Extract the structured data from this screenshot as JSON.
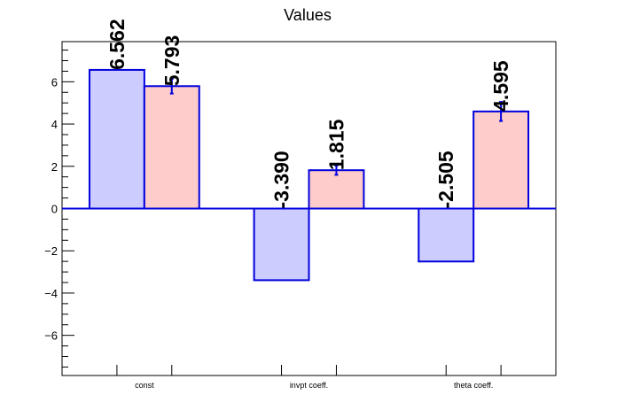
{
  "chart_data": {
    "type": "bar",
    "title": "Values",
    "categories": [
      "const",
      "invpt coeff.",
      "theta coeff."
    ],
    "series": [
      {
        "values": [
          6.562,
          -3.39,
          -2.505
        ],
        "labels": [
          "6.562",
          "-3.390",
          "-2.505"
        ],
        "errors": [
          0,
          0,
          0
        ],
        "fill": "#ccccff",
        "stroke": "#0000dd"
      },
      {
        "values": [
          5.793,
          1.815,
          4.595
        ],
        "labels": [
          "5.793",
          "1.815",
          "4.595"
        ],
        "errors": [
          0.35,
          0.22,
          0.45
        ],
        "fill": "#ffcccc",
        "stroke": "#0000dd"
      }
    ],
    "ylim": [
      -7.9,
      7.9
    ],
    "yticks": [
      -6,
      -4,
      -2,
      0,
      2,
      4,
      6
    ],
    "ytick_labels": [
      "−6",
      "−4",
      "−2",
      "0",
      "2",
      "4",
      "6"
    ],
    "grid": false,
    "zero_line": true,
    "xlabel": "",
    "ylabel": ""
  }
}
